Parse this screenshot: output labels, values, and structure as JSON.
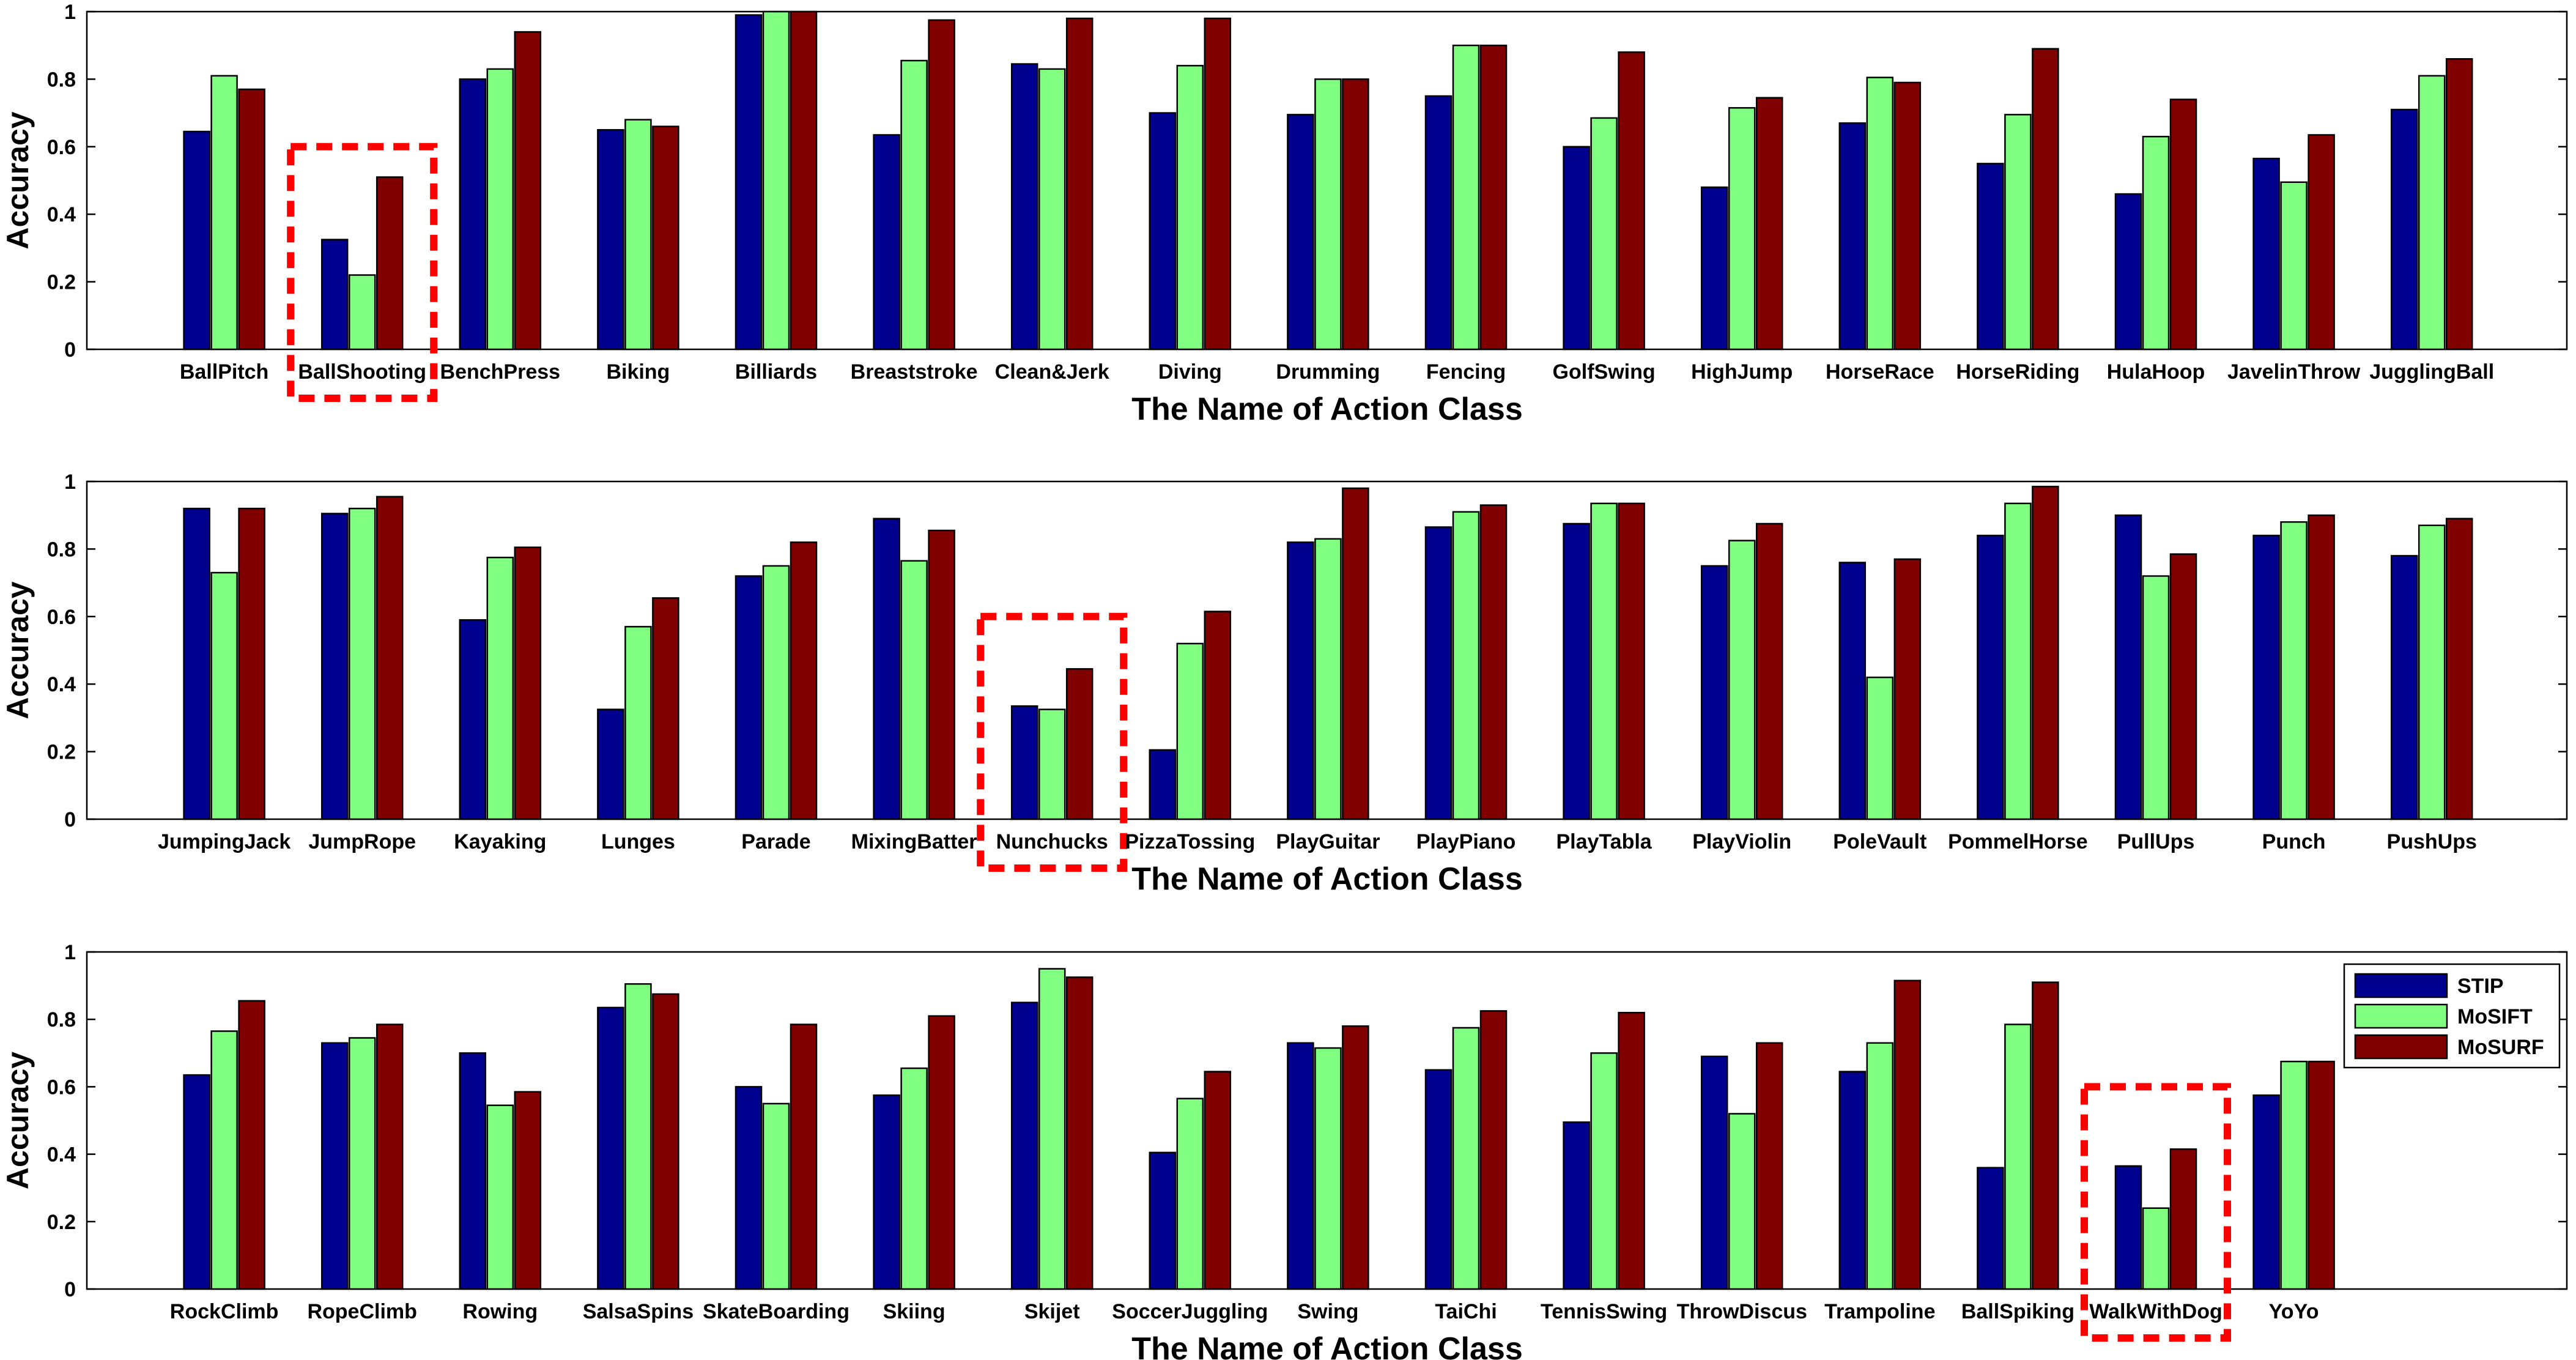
{
  "colors": {
    "STIP": "#00008f",
    "MoSIFT": "#80ff80",
    "MoSURF": "#800000",
    "highlight": "#ff0000"
  },
  "chart_data": [
    {
      "type": "bar",
      "xlabel": "The Name of Action Class",
      "ylabel": "Accuracy",
      "ylim": [
        0,
        1
      ],
      "yticks": [
        "0",
        "0.2",
        "0.4",
        "0.6",
        "0.8",
        "1"
      ],
      "categories": [
        "BallPitch",
        "BallShooting",
        "BenchPress",
        "Biking",
        "Billiards",
        "Breaststroke",
        "Clean&Jerk",
        "Diving",
        "Drumming",
        "Fencing",
        "GolfSwing",
        "HighJump",
        "HorseRace",
        "HorseRiding",
        "HulaHoop",
        "JavelinThrow",
        "JugglingBall"
      ],
      "highlight": "BallShooting",
      "series": [
        {
          "name": "STIP",
          "values": [
            0.645,
            0.325,
            0.8,
            0.65,
            0.99,
            0.635,
            0.845,
            0.7,
            0.695,
            0.75,
            0.6,
            0.48,
            0.67,
            0.55,
            0.46,
            0.565,
            0.71
          ]
        },
        {
          "name": "MoSIFT",
          "values": [
            0.81,
            0.22,
            0.83,
            0.68,
            1.0,
            0.855,
            0.83,
            0.84,
            0.8,
            0.9,
            0.685,
            0.715,
            0.805,
            0.695,
            0.63,
            0.495,
            0.81
          ]
        },
        {
          "name": "MoSURF",
          "values": [
            0.77,
            0.51,
            0.94,
            0.66,
            1.0,
            0.975,
            0.98,
            0.98,
            0.8,
            0.9,
            0.88,
            0.745,
            0.79,
            0.89,
            0.74,
            0.635,
            0.86
          ]
        }
      ]
    },
    {
      "type": "bar",
      "xlabel": "The Name of Action Class",
      "ylabel": "Accuracy",
      "ylim": [
        0,
        1
      ],
      "yticks": [
        "0",
        "0.2",
        "0.4",
        "0.6",
        "0.8",
        "1"
      ],
      "categories": [
        "JumpingJack",
        "JumpRope",
        "Kayaking",
        "Lunges",
        "Parade",
        "MixingBatter",
        "Nunchucks",
        "PizzaTossing",
        "PlayGuitar",
        "PlayPiano",
        "PlayTabla",
        "PlayViolin",
        "PoleVault",
        "PommelHorse",
        "PullUps",
        "Punch",
        "PushUps"
      ],
      "highlight": "Nunchucks",
      "series": [
        {
          "name": "STIP",
          "values": [
            0.92,
            0.905,
            0.59,
            0.325,
            0.72,
            0.89,
            0.335,
            0.205,
            0.82,
            0.865,
            0.875,
            0.75,
            0.76,
            0.84,
            0.9,
            0.84,
            0.78
          ]
        },
        {
          "name": "MoSIFT",
          "values": [
            0.73,
            0.92,
            0.775,
            0.57,
            0.75,
            0.765,
            0.325,
            0.52,
            0.83,
            0.91,
            0.935,
            0.825,
            0.42,
            0.935,
            0.72,
            0.88,
            0.87
          ]
        },
        {
          "name": "MoSURF",
          "values": [
            0.92,
            0.955,
            0.805,
            0.655,
            0.82,
            0.855,
            0.445,
            0.615,
            0.98,
            0.93,
            0.935,
            0.875,
            0.77,
            0.985,
            0.785,
            0.9,
            0.89
          ]
        }
      ]
    },
    {
      "type": "bar",
      "xlabel": "The Name of Action Class",
      "ylabel": "Accuracy",
      "ylim": [
        0,
        1
      ],
      "yticks": [
        "0",
        "0.2",
        "0.4",
        "0.6",
        "0.8",
        "1"
      ],
      "categories": [
        "RockClimb",
        "RopeClimb",
        "Rowing",
        "SalsaSpins",
        "SkateBoarding",
        "Skiing",
        "Skijet",
        "SoccerJuggling",
        "Swing",
        "TaiChi",
        "TennisSwing",
        "ThrowDiscus",
        "Trampoline",
        "BallSpiking",
        "WalkWithDog",
        "YoYo"
      ],
      "highlight": "WalkWithDog",
      "legend": {
        "position": "top-right",
        "entries": [
          "STIP",
          "MoSIFT",
          "MoSURF"
        ]
      },
      "series": [
        {
          "name": "STIP",
          "values": [
            0.635,
            0.73,
            0.7,
            0.835,
            0.6,
            0.575,
            0.85,
            0.405,
            0.73,
            0.65,
            0.495,
            0.69,
            0.645,
            0.36,
            0.365,
            0.575
          ]
        },
        {
          "name": "MoSIFT",
          "values": [
            0.765,
            0.745,
            0.545,
            0.905,
            0.55,
            0.655,
            0.95,
            0.565,
            0.715,
            0.775,
            0.7,
            0.52,
            0.73,
            0.785,
            0.24,
            0.675
          ]
        },
        {
          "name": "MoSURF",
          "values": [
            0.855,
            0.785,
            0.585,
            0.875,
            0.785,
            0.81,
            0.925,
            0.645,
            0.78,
            0.825,
            0.82,
            0.73,
            0.915,
            0.91,
            0.415,
            0.675
          ]
        }
      ]
    }
  ]
}
